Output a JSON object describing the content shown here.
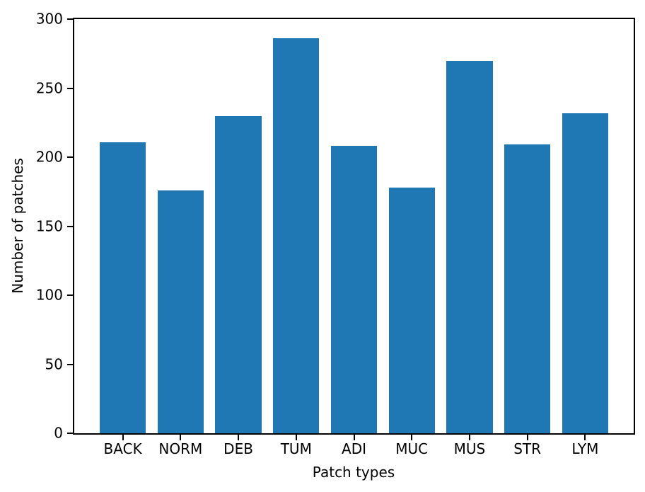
{
  "chart_data": {
    "type": "bar",
    "title": "",
    "xlabel": "Patch types",
    "ylabel": "Number of patches",
    "categories": [
      "BACK",
      "NORM",
      "DEB",
      "TUM",
      "ADI",
      "MUC",
      "MUS",
      "STR",
      "LYM"
    ],
    "values": [
      211,
      176,
      230,
      286,
      208,
      178,
      270,
      209,
      232
    ],
    "ylim": [
      0,
      300
    ],
    "yticks": [
      0,
      50,
      100,
      150,
      200,
      250,
      300
    ],
    "grid": false,
    "legend": null,
    "bar_color": "#1f77b4",
    "axis_color": "#000000",
    "background_color": "#ffffff"
  }
}
